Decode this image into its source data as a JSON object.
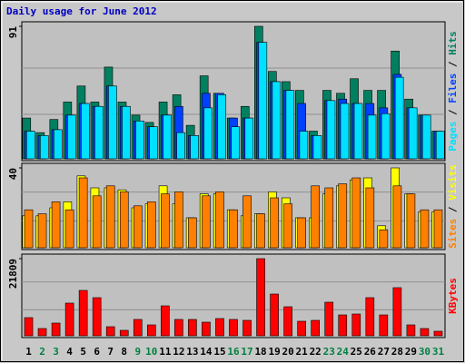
{
  "chart_data": [
    {
      "type": "bar",
      "title": "Daily usage for June 2012",
      "ylim": [
        0,
        91
      ],
      "yticks": [
        91
      ],
      "series": [
        {
          "name": "Hits",
          "color": "#008060",
          "values": [
            28,
            18,
            27,
            39,
            50,
            39,
            63,
            39,
            30,
            25,
            39,
            44,
            23,
            57,
            45,
            28,
            36,
            91,
            60,
            53,
            47,
            19,
            47,
            45,
            55,
            47,
            47,
            74,
            41,
            30,
            19
          ]
        },
        {
          "name": "Files",
          "color": "#0040ff",
          "values": [
            19,
            16,
            20,
            30,
            38,
            36,
            50,
            36,
            26,
            22,
            30,
            36,
            16,
            45,
            45,
            28,
            28,
            80,
            53,
            47,
            38,
            16,
            40,
            41,
            38,
            38,
            35,
            58,
            35,
            30,
            19
          ]
        },
        {
          "name": "Pages",
          "color": "#00e0ff",
          "values": [
            19,
            16,
            20,
            30,
            38,
            36,
            50,
            36,
            26,
            22,
            30,
            18,
            16,
            35,
            44,
            22,
            28,
            80,
            53,
            47,
            19,
            16,
            40,
            38,
            38,
            30,
            31,
            56,
            35,
            30,
            19
          ]
        }
      ]
    },
    {
      "type": "bar",
      "ylim": [
        0,
        40
      ],
      "yticks": [
        40
      ],
      "series": [
        {
          "name": "Visits",
          "color": "#ffff00",
          "values": [
            16,
            16,
            20,
            23,
            36,
            30,
            30,
            29,
            20,
            22,
            31,
            22,
            15,
            27,
            27,
            19,
            16,
            17,
            28,
            25,
            15,
            15,
            27,
            31,
            34,
            35,
            11,
            40,
            27,
            18,
            18
          ]
        },
        {
          "name": "Sites",
          "color": "#ff8000",
          "values": [
            19,
            17,
            23,
            19,
            35,
            26,
            31,
            28,
            21,
            23,
            27,
            28,
            15,
            26,
            28,
            19,
            26,
            17,
            25,
            22,
            15,
            31,
            30,
            32,
            35,
            30,
            9,
            31,
            27,
            19,
            19
          ]
        }
      ]
    },
    {
      "type": "bar",
      "ylim": [
        0,
        21809
      ],
      "yticks": [
        21809
      ],
      "categories": [
        "1",
        "2",
        "3",
        "4",
        "5",
        "6",
        "7",
        "8",
        "9",
        "10",
        "11",
        "12",
        "13",
        "14",
        "15",
        "16",
        "17",
        "18",
        "19",
        "20",
        "21",
        "22",
        "23",
        "24",
        "25",
        "26",
        "27",
        "28",
        "29",
        "30",
        "31"
      ],
      "highlight_categories": [
        "2",
        "3",
        "9",
        "10",
        "16",
        "17",
        "23",
        "24",
        "30",
        "31"
      ],
      "highlight_color": "#008040",
      "series": [
        {
          "name": "KBytes",
          "color": "#ff0000",
          "values": [
            5132,
            2053,
            3592,
            9237,
            12829,
            10776,
            2566,
            1540,
            4618,
            3079,
            8467,
            4618,
            4618,
            3849,
            4875,
            4618,
            4362,
            21809,
            11803,
            8211,
            4105,
            4362,
            9494,
            5901,
            6158,
            10776,
            5901,
            13600,
            3079,
            2053,
            1283
          ]
        }
      ]
    }
  ]
}
